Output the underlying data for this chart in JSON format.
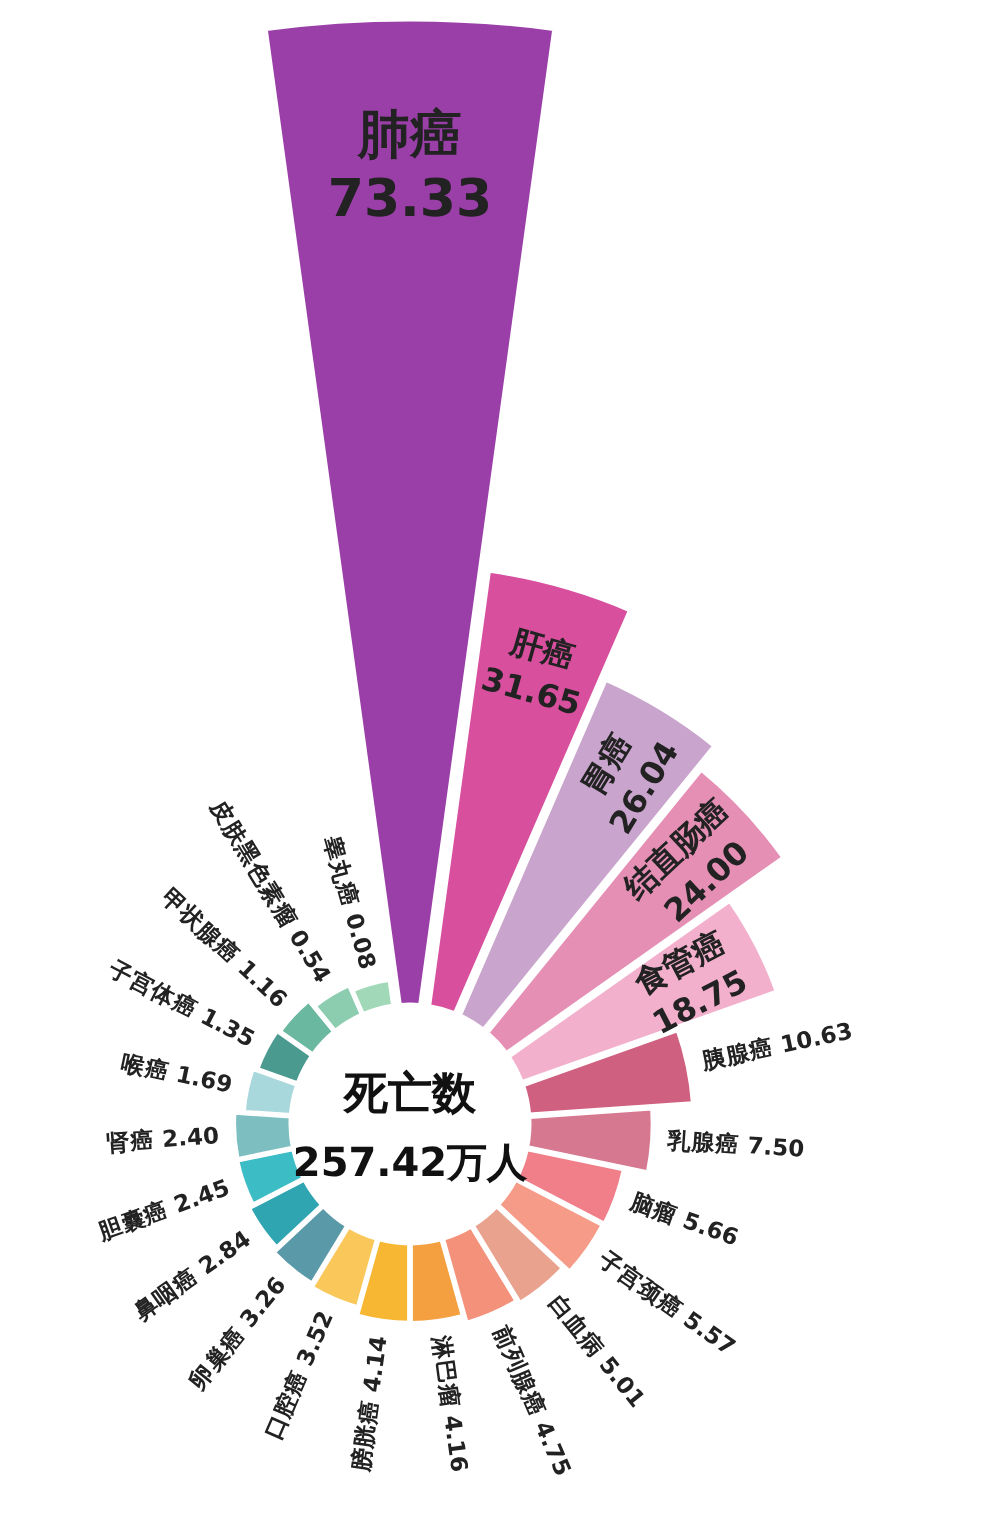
{
  "chart_data": {
    "type": "other",
    "title": "死亡数",
    "subtitle": "257.42万人",
    "categories": [
      "肺癌",
      "肝癌",
      "胃癌",
      "结直肠癌",
      "食管癌",
      "胰腺癌",
      "乳腺癌",
      "脑瘤",
      "子宫颈癌",
      "白血病",
      "前列腺癌",
      "淋巴瘤",
      "膀胱癌",
      "口腔癌",
      "卵巢癌",
      "鼻咽癌",
      "胆囊癌",
      "肾癌",
      "喉癌",
      "子宫体癌",
      "甲状腺癌",
      "皮肤黑色素瘤",
      "睾丸癌"
    ],
    "values": [
      73.33,
      31.65,
      26.04,
      24.0,
      18.75,
      10.63,
      7.5,
      5.66,
      5.57,
      5.01,
      4.75,
      4.16,
      4.14,
      3.52,
      3.26,
      2.84,
      2.45,
      2.4,
      1.69,
      1.35,
      1.16,
      0.54,
      0.08
    ],
    "value_labels": [
      "73.33",
      "31.65",
      "26.04",
      "24.00",
      "18.75",
      "10.63",
      "7.50",
      "5.66",
      "5.57",
      "5.01",
      "4.75",
      "4.16",
      "4.14",
      "3.52",
      "3.26",
      "2.84",
      "2.45",
      "2.40",
      "1.69",
      "1.35",
      "1.16",
      "0.54",
      "0.08"
    ],
    "colors": [
      "#9b3fa8",
      "#d84f9e",
      "#c9a4cc",
      "#e58fb5",
      "#f2b0cc",
      "#d06080",
      "#d67890",
      "#f07f8a",
      "#f59b88",
      "#e8a28e",
      "#f4917a",
      "#f4a040",
      "#f7b733",
      "#f9c75a",
      "#5a9aa8",
      "#2ea5b0",
      "#3cbcc4",
      "#7dbfc0",
      "#a8d8dc",
      "#4a9a90",
      "#6ab8a0",
      "#8ccdb0",
      "#a0d8b8"
    ]
  }
}
